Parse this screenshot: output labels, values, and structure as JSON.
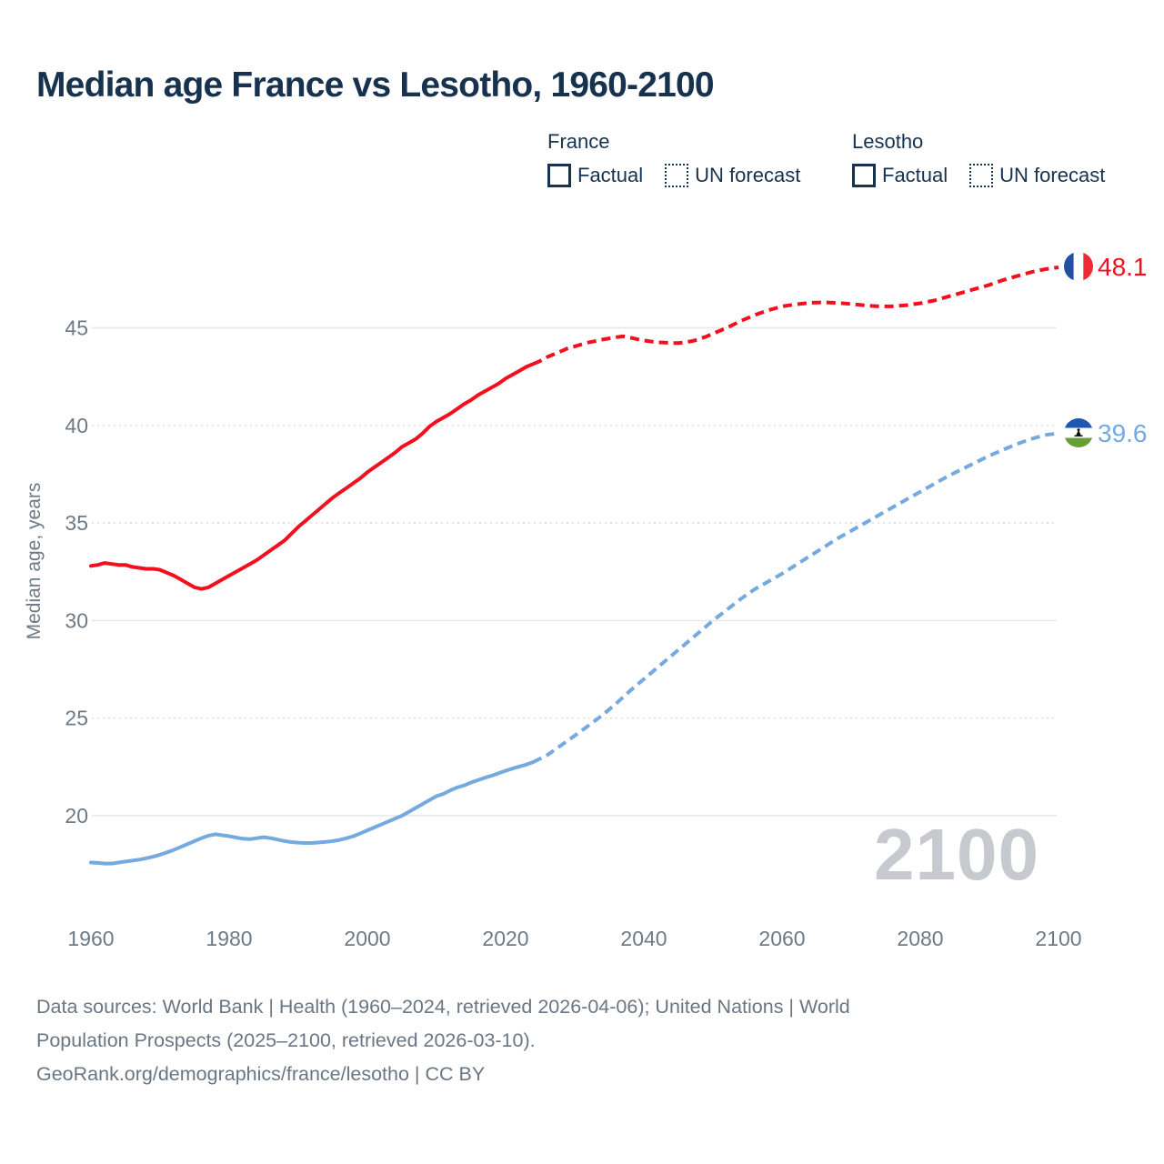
{
  "title": "Median age France vs Lesotho, 1960-2100",
  "legend": {
    "groups": [
      {
        "name": "France",
        "color": "#f2101f",
        "items": [
          {
            "label": "Factual",
            "style": "solid"
          },
          {
            "label": "UN forecast",
            "style": "dotted"
          }
        ]
      },
      {
        "name": "Lesotho",
        "color": "#74aadf",
        "items": [
          {
            "label": "Factual",
            "style": "solid"
          },
          {
            "label": "UN forecast",
            "style": "dotted"
          }
        ]
      }
    ]
  },
  "series_end_labels": [
    {
      "series": "France",
      "value": "48.1",
      "flag": "france-flag"
    },
    {
      "series": "Lesotho",
      "value": "39.6",
      "flag": "lesotho-flag"
    }
  ],
  "watermark": "2100",
  "footer": {
    "lines": [
      "Data sources: World Bank | Health (1960–2024, retrieved 2026-04-06); United Nations | World",
      "Population Prospects (2025–2100, retrieved 2026-03-10).",
      "GeoRank.org/demographics/france/lesotho | CC BY"
    ]
  },
  "chart_data": {
    "type": "line",
    "title": "Median age France vs Lesotho, 1960-2100",
    "xlabel": "",
    "ylabel": "Median age, years",
    "xlim": [
      1955,
      2112
    ],
    "ylim": [
      16.5,
      49
    ],
    "xticks": [
      1960,
      1980,
      2000,
      2020,
      2040,
      2060,
      2080,
      2100
    ],
    "yticks": [
      20,
      25,
      30,
      35,
      40,
      45
    ],
    "grid": true,
    "legend_position": "top",
    "series": [
      {
        "name": "France Factual",
        "color": "#f2101f",
        "style": "solid",
        "points": [
          [
            1960,
            32.8
          ],
          [
            1961,
            32.85
          ],
          [
            1962,
            32.95
          ],
          [
            1963,
            32.9
          ],
          [
            1964,
            32.85
          ],
          [
            1965,
            32.85
          ],
          [
            1966,
            32.75
          ],
          [
            1967,
            32.7
          ],
          [
            1968,
            32.65
          ],
          [
            1969,
            32.65
          ],
          [
            1970,
            32.6
          ],
          [
            1971,
            32.45
          ],
          [
            1972,
            32.3
          ],
          [
            1973,
            32.1
          ],
          [
            1974,
            31.9
          ],
          [
            1975,
            31.7
          ],
          [
            1976,
            31.62
          ],
          [
            1977,
            31.7
          ],
          [
            1978,
            31.9
          ],
          [
            1979,
            32.1
          ],
          [
            1980,
            32.3
          ],
          [
            1981,
            32.5
          ],
          [
            1982,
            32.7
          ],
          [
            1983,
            32.9
          ],
          [
            1984,
            33.1
          ],
          [
            1985,
            33.35
          ],
          [
            1986,
            33.6
          ],
          [
            1987,
            33.85
          ],
          [
            1988,
            34.1
          ],
          [
            1989,
            34.45
          ],
          [
            1990,
            34.8
          ],
          [
            1991,
            35.1
          ],
          [
            1992,
            35.4
          ],
          [
            1993,
            35.7
          ],
          [
            1994,
            36.0
          ],
          [
            1995,
            36.3
          ],
          [
            1996,
            36.55
          ],
          [
            1997,
            36.8
          ],
          [
            1998,
            37.05
          ],
          [
            1999,
            37.3
          ],
          [
            2000,
            37.6
          ],
          [
            2001,
            37.85
          ],
          [
            2002,
            38.1
          ],
          [
            2003,
            38.35
          ],
          [
            2004,
            38.6
          ],
          [
            2005,
            38.9
          ],
          [
            2006,
            39.1
          ],
          [
            2007,
            39.3
          ],
          [
            2008,
            39.6
          ],
          [
            2009,
            39.95
          ],
          [
            2010,
            40.2
          ],
          [
            2011,
            40.4
          ],
          [
            2012,
            40.6
          ],
          [
            2013,
            40.85
          ],
          [
            2014,
            41.1
          ],
          [
            2015,
            41.3
          ],
          [
            2016,
            41.55
          ],
          [
            2017,
            41.75
          ],
          [
            2018,
            41.95
          ],
          [
            2019,
            42.15
          ],
          [
            2020,
            42.4
          ],
          [
            2021,
            42.6
          ],
          [
            2022,
            42.8
          ],
          [
            2023,
            43.0
          ],
          [
            2024,
            43.15
          ]
        ]
      },
      {
        "name": "France UN forecast",
        "color": "#f2101f",
        "style": "dashed",
        "points": [
          [
            2024,
            43.15
          ],
          [
            2025,
            43.3
          ],
          [
            2026,
            43.5
          ],
          [
            2027,
            43.65
          ],
          [
            2028,
            43.8
          ],
          [
            2029,
            43.95
          ],
          [
            2030,
            44.05
          ],
          [
            2031,
            44.15
          ],
          [
            2032,
            44.25
          ],
          [
            2033,
            44.32
          ],
          [
            2034,
            44.4
          ],
          [
            2035,
            44.46
          ],
          [
            2036,
            44.52
          ],
          [
            2037,
            44.56
          ],
          [
            2038,
            44.5
          ],
          [
            2039,
            44.42
          ],
          [
            2040,
            44.35
          ],
          [
            2041,
            44.3
          ],
          [
            2042,
            44.26
          ],
          [
            2043,
            44.24
          ],
          [
            2044,
            44.22
          ],
          [
            2045,
            44.22
          ],
          [
            2046,
            44.26
          ],
          [
            2047,
            44.32
          ],
          [
            2048,
            44.42
          ],
          [
            2049,
            44.55
          ],
          [
            2050,
            44.7
          ],
          [
            2052,
            45.0
          ],
          [
            2054,
            45.35
          ],
          [
            2056,
            45.65
          ],
          [
            2058,
            45.9
          ],
          [
            2060,
            46.1
          ],
          [
            2062,
            46.2
          ],
          [
            2064,
            46.28
          ],
          [
            2066,
            46.3
          ],
          [
            2068,
            46.28
          ],
          [
            2070,
            46.22
          ],
          [
            2072,
            46.15
          ],
          [
            2074,
            46.1
          ],
          [
            2076,
            46.1
          ],
          [
            2078,
            46.16
          ],
          [
            2080,
            46.26
          ],
          [
            2082,
            46.4
          ],
          [
            2084,
            46.6
          ],
          [
            2086,
            46.8
          ],
          [
            2088,
            47.0
          ],
          [
            2090,
            47.2
          ],
          [
            2092,
            47.45
          ],
          [
            2094,
            47.65
          ],
          [
            2096,
            47.85
          ],
          [
            2098,
            48.0
          ],
          [
            2100,
            48.1
          ]
        ]
      },
      {
        "name": "Lesotho Factual",
        "color": "#74aadf",
        "style": "solid",
        "points": [
          [
            1960,
            17.6
          ],
          [
            1961,
            17.58
          ],
          [
            1962,
            17.55
          ],
          [
            1963,
            17.55
          ],
          [
            1964,
            17.6
          ],
          [
            1965,
            17.65
          ],
          [
            1966,
            17.7
          ],
          [
            1967,
            17.75
          ],
          [
            1968,
            17.82
          ],
          [
            1969,
            17.9
          ],
          [
            1970,
            18.0
          ],
          [
            1971,
            18.12
          ],
          [
            1972,
            18.25
          ],
          [
            1973,
            18.4
          ],
          [
            1974,
            18.55
          ],
          [
            1975,
            18.7
          ],
          [
            1976,
            18.85
          ],
          [
            1977,
            18.98
          ],
          [
            1978,
            19.05
          ],
          [
            1979,
            19.0
          ],
          [
            1980,
            18.95
          ],
          [
            1981,
            18.88
          ],
          [
            1982,
            18.82
          ],
          [
            1983,
            18.8
          ],
          [
            1984,
            18.85
          ],
          [
            1985,
            18.9
          ],
          [
            1986,
            18.85
          ],
          [
            1987,
            18.78
          ],
          [
            1988,
            18.7
          ],
          [
            1989,
            18.65
          ],
          [
            1990,
            18.62
          ],
          [
            1991,
            18.6
          ],
          [
            1992,
            18.6
          ],
          [
            1993,
            18.63
          ],
          [
            1994,
            18.66
          ],
          [
            1995,
            18.7
          ],
          [
            1996,
            18.76
          ],
          [
            1997,
            18.85
          ],
          [
            1998,
            18.95
          ],
          [
            1999,
            19.1
          ],
          [
            2000,
            19.25
          ],
          [
            2001,
            19.4
          ],
          [
            2002,
            19.55
          ],
          [
            2003,
            19.7
          ],
          [
            2004,
            19.85
          ],
          [
            2005,
            20.0
          ],
          [
            2006,
            20.2
          ],
          [
            2007,
            20.4
          ],
          [
            2008,
            20.6
          ],
          [
            2009,
            20.8
          ],
          [
            2010,
            21.0
          ],
          [
            2011,
            21.12
          ],
          [
            2012,
            21.3
          ],
          [
            2013,
            21.45
          ],
          [
            2014,
            21.55
          ],
          [
            2015,
            21.7
          ],
          [
            2016,
            21.82
          ],
          [
            2017,
            21.95
          ],
          [
            2018,
            22.05
          ],
          [
            2019,
            22.18
          ],
          [
            2020,
            22.3
          ],
          [
            2021,
            22.42
          ],
          [
            2022,
            22.52
          ],
          [
            2023,
            22.62
          ],
          [
            2024,
            22.75
          ]
        ]
      },
      {
        "name": "Lesotho UN forecast",
        "color": "#74aadf",
        "style": "dashed",
        "points": [
          [
            2024,
            22.75
          ],
          [
            2026,
            23.1
          ],
          [
            2028,
            23.6
          ],
          [
            2030,
            24.1
          ],
          [
            2032,
            24.62
          ],
          [
            2034,
            25.15
          ],
          [
            2036,
            25.75
          ],
          [
            2038,
            26.4
          ],
          [
            2040,
            27.0
          ],
          [
            2042,
            27.6
          ],
          [
            2044,
            28.2
          ],
          [
            2046,
            28.8
          ],
          [
            2048,
            29.4
          ],
          [
            2050,
            30.0
          ],
          [
            2052,
            30.55
          ],
          [
            2054,
            31.1
          ],
          [
            2056,
            31.6
          ],
          [
            2058,
            32.0
          ],
          [
            2060,
            32.4
          ],
          [
            2062,
            32.85
          ],
          [
            2064,
            33.3
          ],
          [
            2066,
            33.75
          ],
          [
            2068,
            34.2
          ],
          [
            2070,
            34.6
          ],
          [
            2072,
            35.0
          ],
          [
            2074,
            35.4
          ],
          [
            2076,
            35.8
          ],
          [
            2078,
            36.2
          ],
          [
            2080,
            36.6
          ],
          [
            2082,
            37.0
          ],
          [
            2084,
            37.4
          ],
          [
            2086,
            37.75
          ],
          [
            2088,
            38.1
          ],
          [
            2090,
            38.45
          ],
          [
            2092,
            38.75
          ],
          [
            2094,
            39.05
          ],
          [
            2096,
            39.3
          ],
          [
            2098,
            39.5
          ],
          [
            2100,
            39.6
          ]
        ]
      }
    ]
  }
}
